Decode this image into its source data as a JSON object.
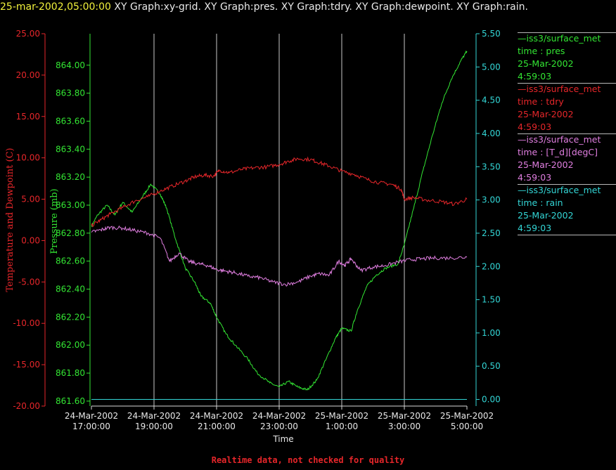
{
  "header": {
    "date": "25-mar-2002,05:00:00",
    "graphs": "XY Graph:xy-grid.  XY Graph:pres.  XY Graph:tdry.  XY Graph:dewpoint.  XY Graph:rain."
  },
  "footer": {
    "text": "Realtime data, not checked for quality"
  },
  "legend": [
    {
      "name": "—iss3/surface_met",
      "field": "time : pres",
      "date": "25-Mar-2002",
      "time": "4:59:03",
      "color": "#33e633"
    },
    {
      "name": "—iss3/surface_met",
      "field": "time : tdry",
      "date": "25-Mar-2002",
      "time": "4:59:03",
      "color": "#e6262a"
    },
    {
      "name": "—iss3/surface_met",
      "field": "time : [T_d][degC]",
      "date": "25-Mar-2002",
      "time": "4:59:03",
      "color": "#e07ee0"
    },
    {
      "name": "—iss3/surface_met",
      "field": "time : rain",
      "date": "25-Mar-2002",
      "time": "4:59:03",
      "color": "#33d6d6"
    }
  ],
  "chart_data": {
    "type": "line",
    "xlabel": "Time",
    "x_ticks": [
      {
        "date": "24-Mar-2002",
        "time": "17:00:00",
        "hour": 17
      },
      {
        "date": "24-Mar-2002",
        "time": "19:00:00",
        "hour": 19
      },
      {
        "date": "24-Mar-2002",
        "time": "21:00:00",
        "hour": 21
      },
      {
        "date": "24-Mar-2002",
        "time": "23:00:00",
        "hour": 23
      },
      {
        "date": "25-Mar-2002",
        "time": "1:00:00",
        "hour": 25
      },
      {
        "date": "25-Mar-2002",
        "time": "3:00:00",
        "hour": 27
      },
      {
        "date": "25-Mar-2002",
        "time": "5:00:00",
        "hour": 29
      }
    ],
    "xlim": [
      17,
      29
    ],
    "grid_x": true,
    "axes": {
      "temp": {
        "label": "Temperature and Dewpoint (C)",
        "color": "#e6262a",
        "range": [
          -20,
          25
        ],
        "ticks": [
          "25.00",
          "20.00",
          "15.00",
          "10.00",
          "5.00",
          "0.00",
          "-5.00",
          "-10.00",
          "-15.00",
          "-20.00"
        ]
      },
      "pres": {
        "label": "Pressure (mb)",
        "color": "#33e633",
        "range": [
          861.5645,
          864.2247
        ],
        "ticks": [
          "864.00",
          "863.80",
          "863.60",
          "863.40",
          "863.20",
          "863.00",
          "862.80",
          "862.60",
          "862.40",
          "862.20",
          "862.00",
          "861.80",
          "861.60"
        ]
      },
      "rain": {
        "label": "",
        "color": "#33d6d6",
        "range": [
          -0.1,
          5.5
        ],
        "ticks": [
          "5.50",
          "5.00",
          "4.50",
          "4.00",
          "3.50",
          "3.00",
          "2.50",
          "2.00",
          "1.50",
          "1.00",
          "0.50",
          "0.00"
        ]
      }
    },
    "series": [
      {
        "name": "pres",
        "axis": "pres",
        "color": "#33e633",
        "points": [
          [
            17.0,
            862.85
          ],
          [
            17.2,
            862.93
          ],
          [
            17.5,
            863.0
          ],
          [
            17.75,
            862.93
          ],
          [
            18.0,
            863.02
          ],
          [
            18.3,
            862.95
          ],
          [
            18.6,
            863.05
          ],
          [
            18.9,
            863.15
          ],
          [
            19.2,
            863.08
          ],
          [
            19.4,
            862.98
          ],
          [
            19.7,
            862.75
          ],
          [
            20.0,
            862.55
          ],
          [
            20.3,
            862.45
          ],
          [
            20.5,
            862.35
          ],
          [
            20.8,
            862.3
          ],
          [
            21.0,
            862.2
          ],
          [
            21.3,
            862.08
          ],
          [
            21.6,
            862.0
          ],
          [
            22.0,
            861.9
          ],
          [
            22.3,
            861.8
          ],
          [
            22.7,
            861.73
          ],
          [
            23.0,
            861.7
          ],
          [
            23.3,
            861.74
          ],
          [
            23.6,
            861.7
          ],
          [
            23.9,
            861.68
          ],
          [
            24.2,
            861.75
          ],
          [
            24.5,
            861.9
          ],
          [
            24.8,
            862.05
          ],
          [
            25.0,
            862.12
          ],
          [
            25.3,
            862.1
          ],
          [
            25.5,
            862.25
          ],
          [
            25.8,
            862.42
          ],
          [
            26.1,
            862.5
          ],
          [
            26.4,
            862.55
          ],
          [
            26.8,
            862.58
          ],
          [
            27.0,
            862.72
          ],
          [
            27.3,
            862.98
          ],
          [
            27.6,
            863.25
          ],
          [
            27.9,
            863.5
          ],
          [
            28.2,
            863.73
          ],
          [
            28.5,
            863.9
          ],
          [
            28.8,
            864.03
          ],
          [
            29.0,
            864.1
          ]
        ]
      },
      {
        "name": "tdry",
        "axis": "temp",
        "color": "#e6262a",
        "points": [
          [
            17.0,
            1.8
          ],
          [
            17.3,
            2.5
          ],
          [
            17.6,
            3.2
          ],
          [
            18.0,
            4.0
          ],
          [
            18.4,
            4.8
          ],
          [
            18.8,
            5.3
          ],
          [
            19.2,
            6.0
          ],
          [
            19.6,
            6.6
          ],
          [
            20.0,
            7.2
          ],
          [
            20.3,
            7.7
          ],
          [
            20.6,
            7.9
          ],
          [
            20.9,
            7.8
          ],
          [
            21.1,
            8.5
          ],
          [
            21.4,
            8.2
          ],
          [
            21.8,
            8.6
          ],
          [
            22.2,
            8.8
          ],
          [
            22.6,
            8.9
          ],
          [
            23.0,
            9.2
          ],
          [
            23.3,
            9.6
          ],
          [
            23.6,
            9.9
          ],
          [
            24.0,
            9.8
          ],
          [
            24.3,
            9.4
          ],
          [
            24.6,
            9.0
          ],
          [
            25.0,
            8.4
          ],
          [
            25.4,
            8.0
          ],
          [
            25.8,
            7.4
          ],
          [
            26.2,
            7.0
          ],
          [
            26.6,
            6.8
          ],
          [
            26.9,
            6.2
          ],
          [
            27.0,
            5.0
          ],
          [
            27.3,
            5.2
          ],
          [
            27.7,
            4.9
          ],
          [
            28.2,
            4.7
          ],
          [
            28.6,
            4.4
          ],
          [
            29.0,
            5.0
          ]
        ]
      },
      {
        "name": "dewpoint",
        "axis": "temp",
        "color": "#e07ee0",
        "points": [
          [
            17.0,
            1.0
          ],
          [
            17.3,
            1.3
          ],
          [
            17.6,
            1.6
          ],
          [
            18.0,
            1.5
          ],
          [
            18.4,
            1.2
          ],
          [
            18.8,
            0.9
          ],
          [
            19.2,
            0.3
          ],
          [
            19.5,
            -2.5
          ],
          [
            19.8,
            -1.5
          ],
          [
            20.1,
            -2.5
          ],
          [
            20.4,
            -2.8
          ],
          [
            20.7,
            -3.0
          ],
          [
            21.0,
            -3.5
          ],
          [
            21.3,
            -3.7
          ],
          [
            21.6,
            -3.9
          ],
          [
            22.0,
            -4.3
          ],
          [
            22.4,
            -4.5
          ],
          [
            22.8,
            -5.0
          ],
          [
            23.2,
            -5.3
          ],
          [
            23.6,
            -5.0
          ],
          [
            24.0,
            -4.3
          ],
          [
            24.3,
            -4.0
          ],
          [
            24.6,
            -4.2
          ],
          [
            24.9,
            -2.5
          ],
          [
            25.1,
            -3.0
          ],
          [
            25.3,
            -2.2
          ],
          [
            25.6,
            -3.6
          ],
          [
            26.0,
            -3.2
          ],
          [
            26.4,
            -3.0
          ],
          [
            26.8,
            -2.6
          ],
          [
            27.2,
            -2.3
          ],
          [
            27.6,
            -2.2
          ],
          [
            28.0,
            -2.1
          ],
          [
            28.5,
            -2.1
          ],
          [
            29.0,
            -2.0
          ]
        ]
      },
      {
        "name": "rain",
        "axis": "rain",
        "color": "#33d6d6",
        "points": [
          [
            17.0,
            0.0
          ],
          [
            29.0,
            0.0
          ]
        ]
      }
    ]
  }
}
